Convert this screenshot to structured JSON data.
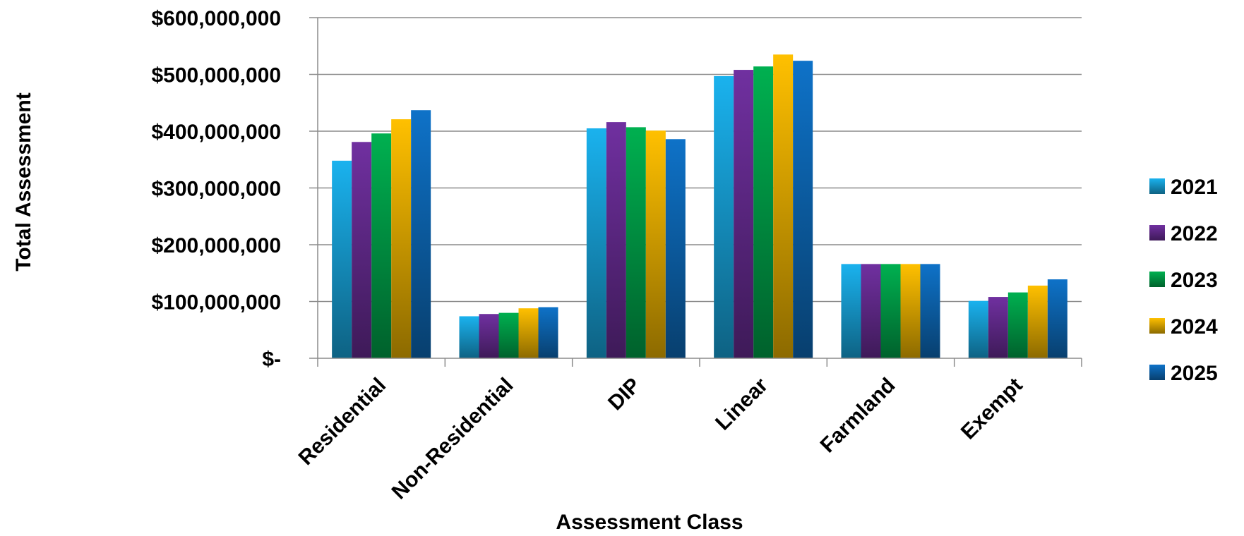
{
  "chart_data": {
    "type": "bar",
    "title": "",
    "xlabel": "Assessment Class",
    "ylabel": "Total Assessment",
    "categories": [
      "Residential",
      "Non-Residential",
      "DIP",
      "Linear",
      "Farmland",
      "Exempt"
    ],
    "yticks": [
      "$-",
      "$100,000,000",
      "$200,000,000",
      "$300,000,000",
      "$400,000,000",
      "$500,000,000",
      "$600,000,000"
    ],
    "ylim": [
      0,
      600000000
    ],
    "grid": true,
    "legend_position": "right",
    "series": [
      {
        "name": "2021",
        "color": "#1ab2ee",
        "values": [
          348000000,
          74000000,
          405000000,
          497000000,
          166000000,
          101000000
        ]
      },
      {
        "name": "2022",
        "color": "#7030a0",
        "values": [
          381000000,
          78000000,
          416000000,
          508000000,
          166000000,
          108000000
        ]
      },
      {
        "name": "2023",
        "color": "#00b050",
        "values": [
          396000000,
          80000000,
          407000000,
          514000000,
          166000000,
          116000000
        ]
      },
      {
        "name": "2024",
        "color": "#ffc000",
        "values": [
          421000000,
          88000000,
          401000000,
          535000000,
          166000000,
          128000000
        ]
      },
      {
        "name": "2025",
        "color": "#0e72c8",
        "values": [
          437000000,
          90000000,
          386000000,
          524000000,
          166000000,
          139000000
        ]
      }
    ]
  }
}
